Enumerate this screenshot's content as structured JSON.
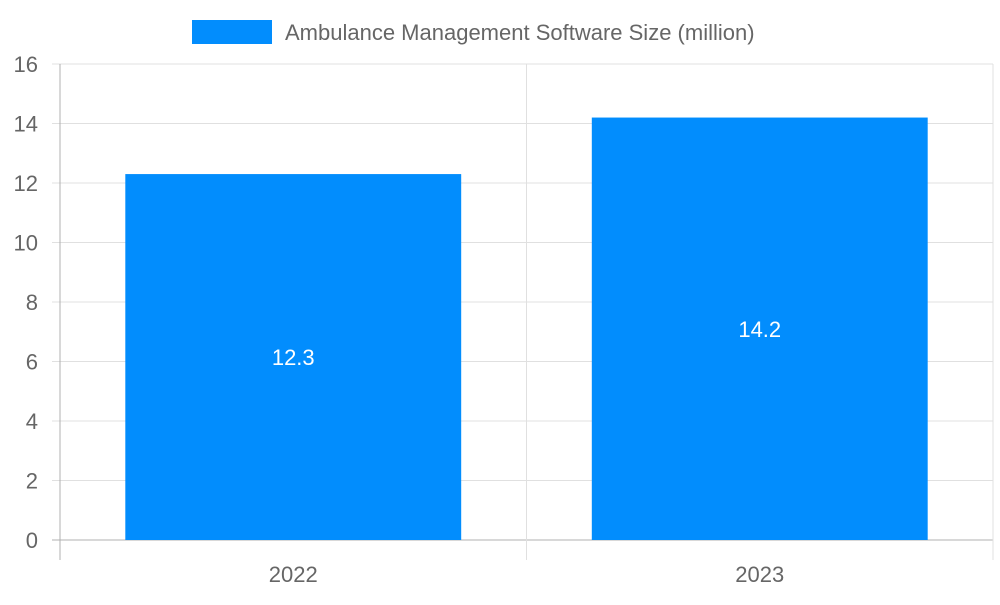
{
  "chart_data": {
    "type": "bar",
    "title": "",
    "xlabel": "",
    "ylabel": "",
    "categories": [
      "2022",
      "2023"
    ],
    "series": [
      {
        "name": "Ambulance Management Software Size (million)",
        "values": [
          12.3,
          14.2
        ],
        "color": "#028dfd"
      }
    ],
    "data_labels": [
      "12.3",
      "14.2"
    ],
    "ylim": [
      0,
      16
    ],
    "yticks": [
      "0",
      "2",
      "4",
      "6",
      "8",
      "10",
      "12",
      "14",
      "16"
    ],
    "grid": true,
    "legend": "top-center"
  }
}
